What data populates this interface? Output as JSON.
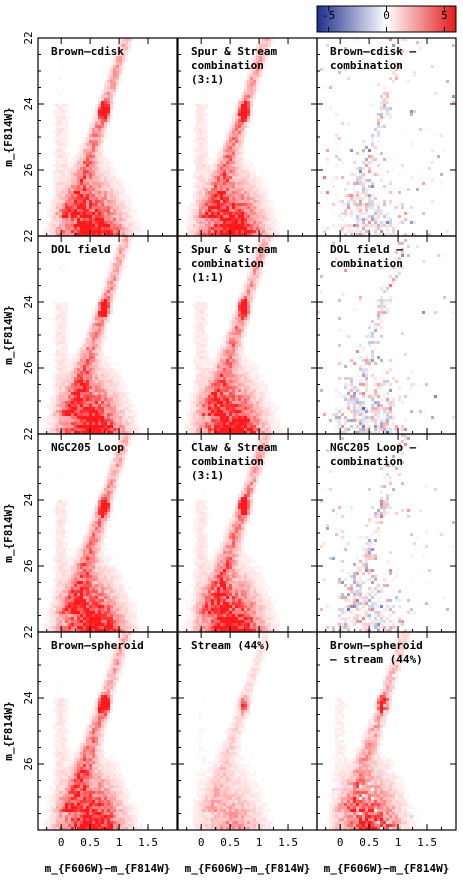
{
  "chart_data": {
    "type": "heatmap",
    "description_free": true,
    "colorbar": {
      "ticks": [
        "-5",
        "0",
        "5"
      ],
      "vmin": -6,
      "vmax": 6,
      "low_color": "#1f2e8c",
      "mid_color": "#ffffff",
      "high_color": "#e41a1c"
    },
    "xticks": [
      "0",
      "0.5",
      "1",
      "1.5"
    ],
    "xlim": [
      -0.4,
      2.0
    ],
    "xlabels": [
      "m_{F606W}−m_{F814W}",
      "m_{F606W}−m_{F814W}",
      "m_{F606W}−m_{F814W}"
    ],
    "rows": [
      {
        "ylabel": "m_{F814W}",
        "yticks": [
          "22",
          "24",
          "26"
        ],
        "ylim": [
          22,
          28
        ],
        "panels": [
          {
            "title": [
              "Brown–cdisk"
            ],
            "kind": "model"
          },
          {
            "title": [
              "Spur & Stream",
              "combination",
              "(3:1)"
            ],
            "kind": "model"
          },
          {
            "title": [
              "Brown–cdisk –",
              "combination"
            ],
            "kind": "residual"
          }
        ]
      },
      {
        "ylabel": "m_{F814W}",
        "yticks": [
          "22",
          "24",
          "26"
        ],
        "ylim": [
          22,
          28
        ],
        "panels": [
          {
            "title": [
              "DOL field"
            ],
            "kind": "model"
          },
          {
            "title": [
              "Spur & Stream",
              "combination",
              "(1:1)"
            ],
            "kind": "model"
          },
          {
            "title": [
              "DOL field –",
              "combination"
            ],
            "kind": "residual"
          }
        ]
      },
      {
        "ylabel": "m_{F814W}",
        "yticks": [
          "22",
          "24",
          "26"
        ],
        "ylim": [
          22,
          28
        ],
        "panels": [
          {
            "title": [
              "NGC205 Loop"
            ],
            "kind": "model"
          },
          {
            "title": [
              "Claw & Stream",
              "combination",
              "(3:1)"
            ],
            "kind": "model"
          },
          {
            "title": [
              "NGC205 Loop –",
              "combination"
            ],
            "kind": "residual"
          }
        ]
      },
      {
        "ylabel": "m_{F814W}",
        "yticks": [
          "22",
          "24",
          "26"
        ],
        "ylim": [
          22,
          28
        ],
        "panels": [
          {
            "title": [
              "Brown–spheroid"
            ],
            "kind": "model"
          },
          {
            "title": [
              "Stream (44%)"
            ],
            "kind": "model_faint"
          },
          {
            "title": [
              "Brown–spheroid",
              "– stream (44%)"
            ],
            "kind": "positive_residual"
          }
        ]
      }
    ]
  }
}
